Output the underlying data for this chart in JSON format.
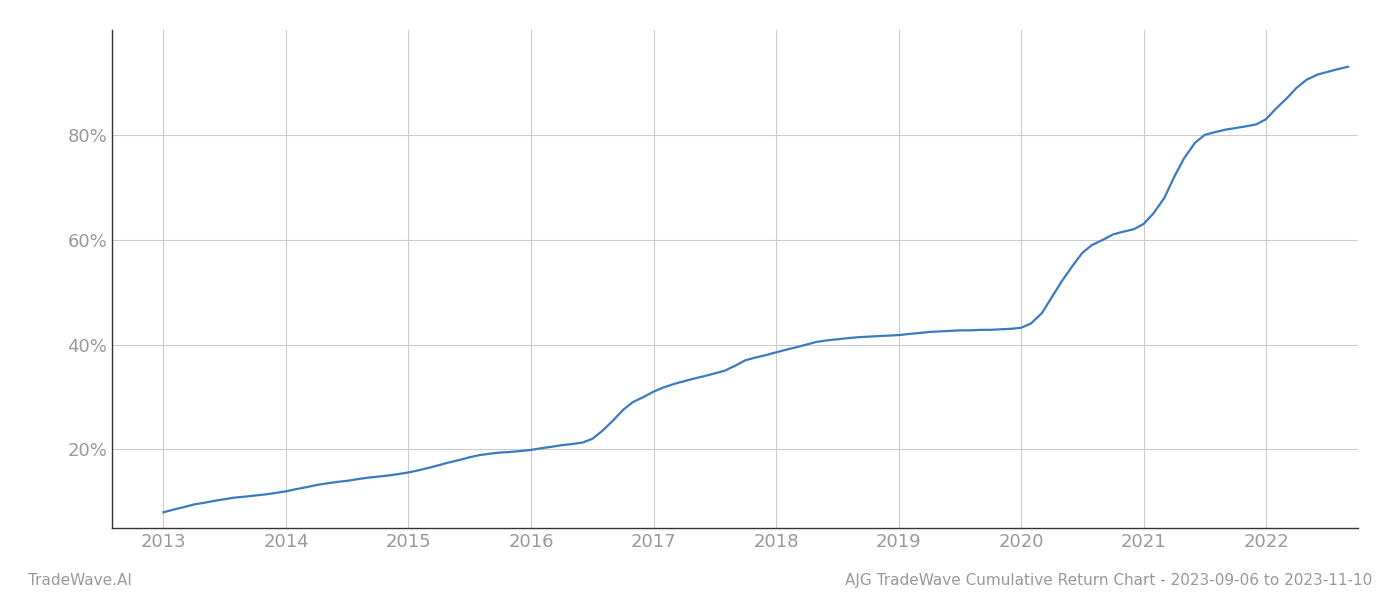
{
  "title": "",
  "footer_left": "TradeWave.AI",
  "footer_right": "AJG TradeWave Cumulative Return Chart - 2023-09-06 to 2023-11-10",
  "line_color": "#3a7abf",
  "background_color": "#ffffff",
  "grid_color": "#cccccc",
  "x_years": [
    2013,
    2014,
    2015,
    2016,
    2017,
    2018,
    2019,
    2020,
    2021,
    2022
  ],
  "x_data": [
    2013.0,
    2013.08,
    2013.17,
    2013.25,
    2013.33,
    2013.42,
    2013.5,
    2013.58,
    2013.67,
    2013.75,
    2013.83,
    2013.92,
    2014.0,
    2014.08,
    2014.17,
    2014.25,
    2014.33,
    2014.42,
    2014.5,
    2014.58,
    2014.67,
    2014.75,
    2014.83,
    2014.92,
    2015.0,
    2015.08,
    2015.17,
    2015.25,
    2015.33,
    2015.42,
    2015.5,
    2015.58,
    2015.67,
    2015.75,
    2015.83,
    2015.92,
    2016.0,
    2016.08,
    2016.17,
    2016.25,
    2016.33,
    2016.42,
    2016.5,
    2016.58,
    2016.67,
    2016.75,
    2016.83,
    2016.92,
    2017.0,
    2017.08,
    2017.17,
    2017.25,
    2017.33,
    2017.42,
    2017.5,
    2017.58,
    2017.67,
    2017.75,
    2017.83,
    2017.92,
    2018.0,
    2018.08,
    2018.17,
    2018.25,
    2018.33,
    2018.42,
    2018.5,
    2018.58,
    2018.67,
    2018.75,
    2018.83,
    2018.92,
    2019.0,
    2019.08,
    2019.17,
    2019.25,
    2019.33,
    2019.42,
    2019.5,
    2019.58,
    2019.67,
    2019.75,
    2019.83,
    2019.92,
    2020.0,
    2020.08,
    2020.17,
    2020.25,
    2020.33,
    2020.42,
    2020.5,
    2020.58,
    2020.67,
    2020.75,
    2020.83,
    2020.92,
    2021.0,
    2021.08,
    2021.17,
    2021.25,
    2021.33,
    2021.42,
    2021.5,
    2021.58,
    2021.67,
    2021.75,
    2021.83,
    2021.92,
    2022.0,
    2022.08,
    2022.17,
    2022.25,
    2022.33,
    2022.42,
    2022.5,
    2022.58,
    2022.67
  ],
  "y_data": [
    8.0,
    8.5,
    9.0,
    9.5,
    9.8,
    10.2,
    10.5,
    10.8,
    11.0,
    11.2,
    11.4,
    11.7,
    12.0,
    12.4,
    12.8,
    13.2,
    13.5,
    13.8,
    14.0,
    14.3,
    14.6,
    14.8,
    15.0,
    15.3,
    15.6,
    16.0,
    16.5,
    17.0,
    17.5,
    18.0,
    18.5,
    18.9,
    19.2,
    19.4,
    19.5,
    19.7,
    19.9,
    20.2,
    20.5,
    20.8,
    21.0,
    21.3,
    22.0,
    23.5,
    25.5,
    27.5,
    29.0,
    30.0,
    31.0,
    31.8,
    32.5,
    33.0,
    33.5,
    34.0,
    34.5,
    35.0,
    36.0,
    37.0,
    37.5,
    38.0,
    38.5,
    39.0,
    39.5,
    40.0,
    40.5,
    40.8,
    41.0,
    41.2,
    41.4,
    41.5,
    41.6,
    41.7,
    41.8,
    42.0,
    42.2,
    42.4,
    42.5,
    42.6,
    42.7,
    42.7,
    42.8,
    42.8,
    42.9,
    43.0,
    43.2,
    44.0,
    46.0,
    49.0,
    52.0,
    55.0,
    57.5,
    59.0,
    60.0,
    61.0,
    61.5,
    62.0,
    63.0,
    65.0,
    68.0,
    72.0,
    75.5,
    78.5,
    80.0,
    80.5,
    81.0,
    81.3,
    81.6,
    82.0,
    83.0,
    85.0,
    87.0,
    89.0,
    90.5,
    91.5,
    92.0,
    92.5,
    93.0
  ],
  "ylim": [
    5,
    100
  ],
  "yticks": [
    20,
    40,
    60,
    80
  ],
  "xlim": [
    2012.58,
    2022.75
  ],
  "tick_label_color": "#999999",
  "tick_fontsize": 13,
  "footer_fontsize": 11,
  "line_width": 1.6,
  "spine_color": "#333333"
}
